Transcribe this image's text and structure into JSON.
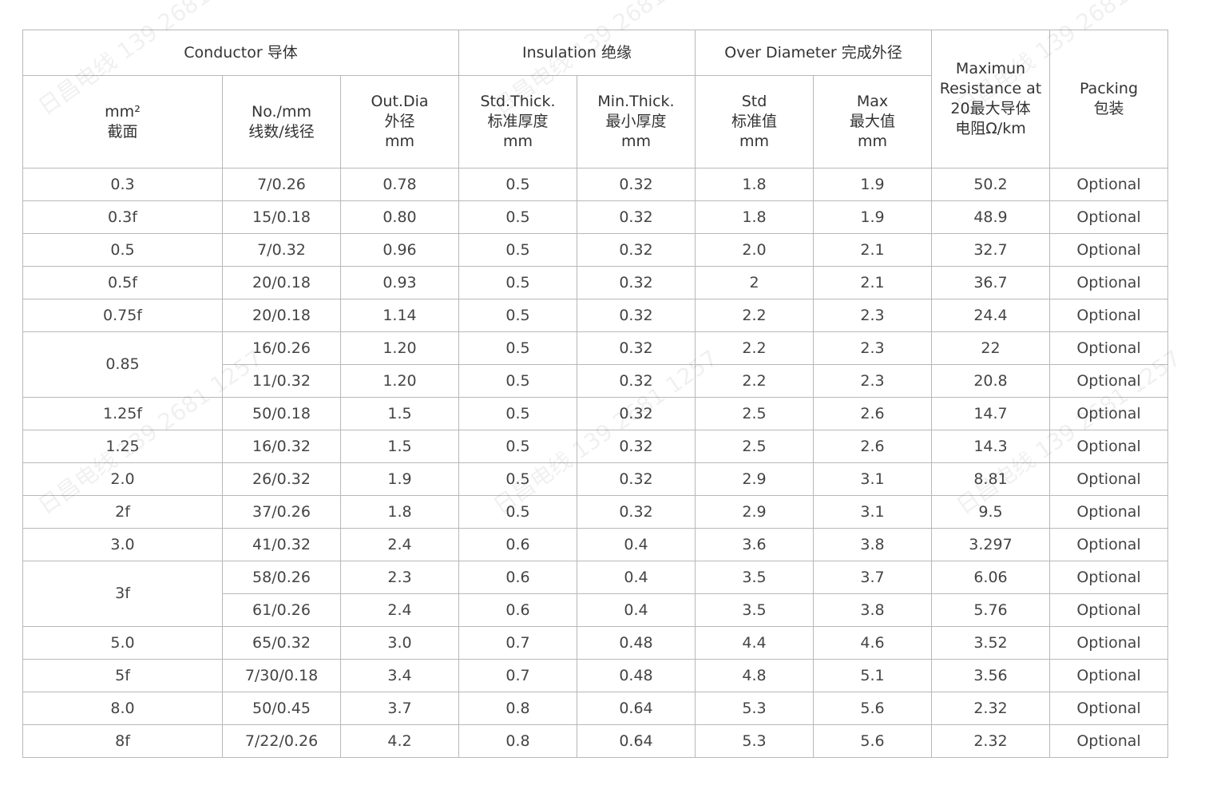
{
  "header": {
    "groups": {
      "conductor": "Conductor 导体",
      "insulation": "Insulation 绝缘",
      "over_diameter": "Over Diameter 完成外径",
      "resistance": [
        "Maximun",
        "Resistance at",
        "20最大导体",
        "电阻Ω/km"
      ],
      "packing": [
        "Packing",
        "包装"
      ]
    },
    "columns": {
      "size": [
        "mm²",
        "截面"
      ],
      "strand": [
        "No./mm",
        "线数/线径"
      ],
      "out_dia": [
        "Out.Dia",
        "外径",
        "mm"
      ],
      "std_thick": [
        "Std.Thick.",
        "标准厚度",
        "mm"
      ],
      "min_thick": [
        "Min.Thick.",
        "最小厚度",
        "mm"
      ],
      "od_std": [
        "Std",
        "标准值",
        "mm"
      ],
      "od_max": [
        "Max",
        "最大值",
        "mm"
      ]
    }
  },
  "rows": [
    {
      "size": "0.3",
      "span": 1,
      "cells": [
        "7/0.26",
        "0.78",
        "0.5",
        "0.32",
        "1.8",
        "1.9",
        "50.2",
        "Optional"
      ]
    },
    {
      "size": "0.3f",
      "span": 1,
      "cells": [
        "15/0.18",
        "0.80",
        "0.5",
        "0.32",
        "1.8",
        "1.9",
        "48.9",
        "Optional"
      ]
    },
    {
      "size": "0.5",
      "span": 1,
      "cells": [
        "7/0.32",
        "0.96",
        "0.5",
        "0.32",
        "2.0",
        "2.1",
        "32.7",
        "Optional"
      ]
    },
    {
      "size": "0.5f",
      "span": 1,
      "cells": [
        "20/0.18",
        "0.93",
        "0.5",
        "0.32",
        "2",
        "2.1",
        "36.7",
        "Optional"
      ]
    },
    {
      "size": "0.75f",
      "span": 1,
      "cells": [
        "20/0.18",
        "1.14",
        "0.5",
        "0.32",
        "2.2",
        "2.3",
        "24.4",
        "Optional"
      ]
    },
    {
      "size": "0.85",
      "span": 2,
      "cells": [
        "16/0.26",
        "1.20",
        "0.5",
        "0.32",
        "2.2",
        "2.3",
        "22",
        "Optional"
      ]
    },
    {
      "cells": [
        "11/0.32",
        "1.20",
        "0.5",
        "0.32",
        "2.2",
        "2.3",
        "20.8",
        "Optional"
      ]
    },
    {
      "size": "1.25f",
      "span": 1,
      "cells": [
        "50/0.18",
        "1.5",
        "0.5",
        "0.32",
        "2.5",
        "2.6",
        "14.7",
        "Optional"
      ]
    },
    {
      "size": "1.25",
      "span": 1,
      "cells": [
        "16/0.32",
        "1.5",
        "0.5",
        "0.32",
        "2.5",
        "2.6",
        "14.3",
        "Optional"
      ]
    },
    {
      "size": "2.0",
      "span": 1,
      "cells": [
        "26/0.32",
        "1.9",
        "0.5",
        "0.32",
        "2.9",
        "3.1",
        "8.81",
        "Optional"
      ]
    },
    {
      "size": "2f",
      "span": 1,
      "cells": [
        "37/0.26",
        "1.8",
        "0.5",
        "0.32",
        "2.9",
        "3.1",
        "9.5",
        "Optional"
      ]
    },
    {
      "size": "3.0",
      "span": 1,
      "cells": [
        "41/0.32",
        "2.4",
        "0.6",
        "0.4",
        "3.6",
        "3.8",
        "3.297",
        "Optional"
      ]
    },
    {
      "size": "3f",
      "span": 2,
      "cells": [
        "58/0.26",
        "2.3",
        "0.6",
        "0.4",
        "3.5",
        "3.7",
        "6.06",
        "Optional"
      ]
    },
    {
      "cells": [
        "61/0.26",
        "2.4",
        "0.6",
        "0.4",
        "3.5",
        "3.8",
        "5.76",
        "Optional"
      ]
    },
    {
      "size": "5.0",
      "span": 1,
      "cells": [
        "65/0.32",
        "3.0",
        "0.7",
        "0.48",
        "4.4",
        "4.6",
        "3.52",
        "Optional"
      ]
    },
    {
      "size": "5f",
      "span": 1,
      "cells": [
        "7/30/0.18",
        "3.4",
        "0.7",
        "0.48",
        "4.8",
        "5.1",
        "3.56",
        "Optional"
      ]
    },
    {
      "size": "8.0",
      "span": 1,
      "cells": [
        "50/0.45",
        "3.7",
        "0.8",
        "0.64",
        "5.3",
        "5.6",
        "2.32",
        "Optional"
      ]
    },
    {
      "size": "8f",
      "span": 1,
      "cells": [
        "7/22/0.26",
        "4.2",
        "0.8",
        "0.64",
        "5.3",
        "5.6",
        "2.32",
        "Optional"
      ]
    }
  ],
  "watermark": "日昌电线 139 2681 1257"
}
